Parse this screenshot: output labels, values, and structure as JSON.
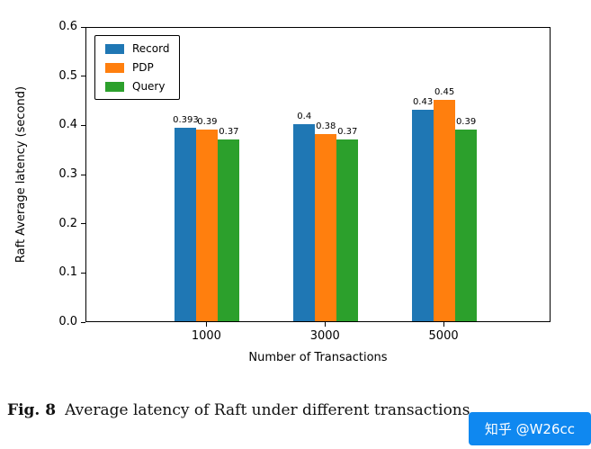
{
  "chart_data": {
    "type": "bar",
    "title": "",
    "xlabel": "Number of Transactions",
    "ylabel": "Raft Average latency (second)",
    "categories": [
      "1000",
      "3000",
      "5000"
    ],
    "series": [
      {
        "name": "Record",
        "color": "#1f77b4",
        "values": [
          0.393,
          0.4,
          0.43
        ],
        "labels": [
          "0.393",
          "0.4",
          "0.43"
        ]
      },
      {
        "name": "PDP",
        "color": "#ff7f0e",
        "values": [
          0.39,
          0.38,
          0.45
        ],
        "labels": [
          "0.39",
          "0.38",
          "0.45"
        ]
      },
      {
        "name": "Query",
        "color": "#2ca02c",
        "values": [
          0.37,
          0.37,
          0.39
        ],
        "labels": [
          "0.37",
          "0.37",
          "0.39"
        ]
      }
    ],
    "ylim": [
      0,
      0.6
    ],
    "yticks": [
      "0.0",
      "0.1",
      "0.2",
      "0.3",
      "0.4",
      "0.5",
      "0.6"
    ],
    "grid": false,
    "legend_position": "upper-left",
    "group_center_fractions": [
      0.26,
      0.515,
      0.77
    ]
  },
  "caption": {
    "fig_label": "Fig. 8",
    "text": "Average latency of Raft under different transactions."
  },
  "watermark": {
    "text": "知乎 @W26cc",
    "bg": "#0f88f0"
  }
}
